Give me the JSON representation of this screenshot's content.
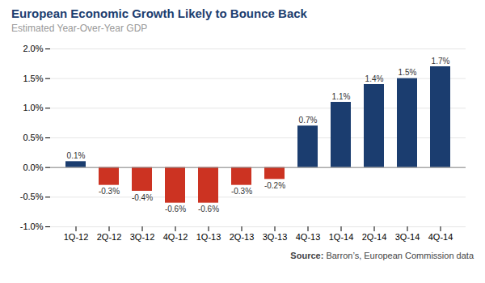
{
  "chart_data": {
    "type": "bar",
    "title": "European Economic Growth Likely to Bounce Back",
    "subtitle": "Estimated Year-Over-Year GDP",
    "source_label": "Source:",
    "source": "Barron’s, European Commission data",
    "categories": [
      "1Q-12",
      "2Q-12",
      "3Q-12",
      "4Q-12",
      "1Q-13",
      "2Q-13",
      "3Q-13",
      "4Q-13",
      "1Q-14",
      "2Q-14",
      "3Q-14",
      "4Q-14"
    ],
    "values": [
      0.1,
      -0.3,
      -0.4,
      -0.6,
      -0.6,
      -0.3,
      -0.2,
      0.7,
      1.1,
      1.4,
      1.5,
      1.7
    ],
    "value_labels": [
      "0.1%",
      "-0.3%",
      "-0.4%",
      "-0.6%",
      "-0.6%",
      "-0.3%",
      "-0.2%",
      "0.7%",
      "1.1%",
      "1.4%",
      "1.5%",
      "1.7%"
    ],
    "colors": [
      "#1b3d6f",
      "#cc3322",
      "#cc3322",
      "#cc3322",
      "#cc3322",
      "#cc3322",
      "#cc3322",
      "#1b3d6f",
      "#1b3d6f",
      "#1b3d6f",
      "#1b3d6f",
      "#1b3d6f"
    ],
    "data_labels": true,
    "ylim": [
      -1.0,
      2.0
    ],
    "yticks": [
      {
        "value": -1.0,
        "label": "-1.0%"
      },
      {
        "value": -0.5,
        "label": "-0.5%"
      },
      {
        "value": 0.0,
        "label": "0.0%"
      },
      {
        "value": 0.5,
        "label": "0.5%"
      },
      {
        "value": 1.0,
        "label": "1.0%"
      },
      {
        "value": 1.5,
        "label": "1.5%"
      },
      {
        "value": 2.0,
        "label": "2.0%"
      }
    ],
    "grid": true
  }
}
